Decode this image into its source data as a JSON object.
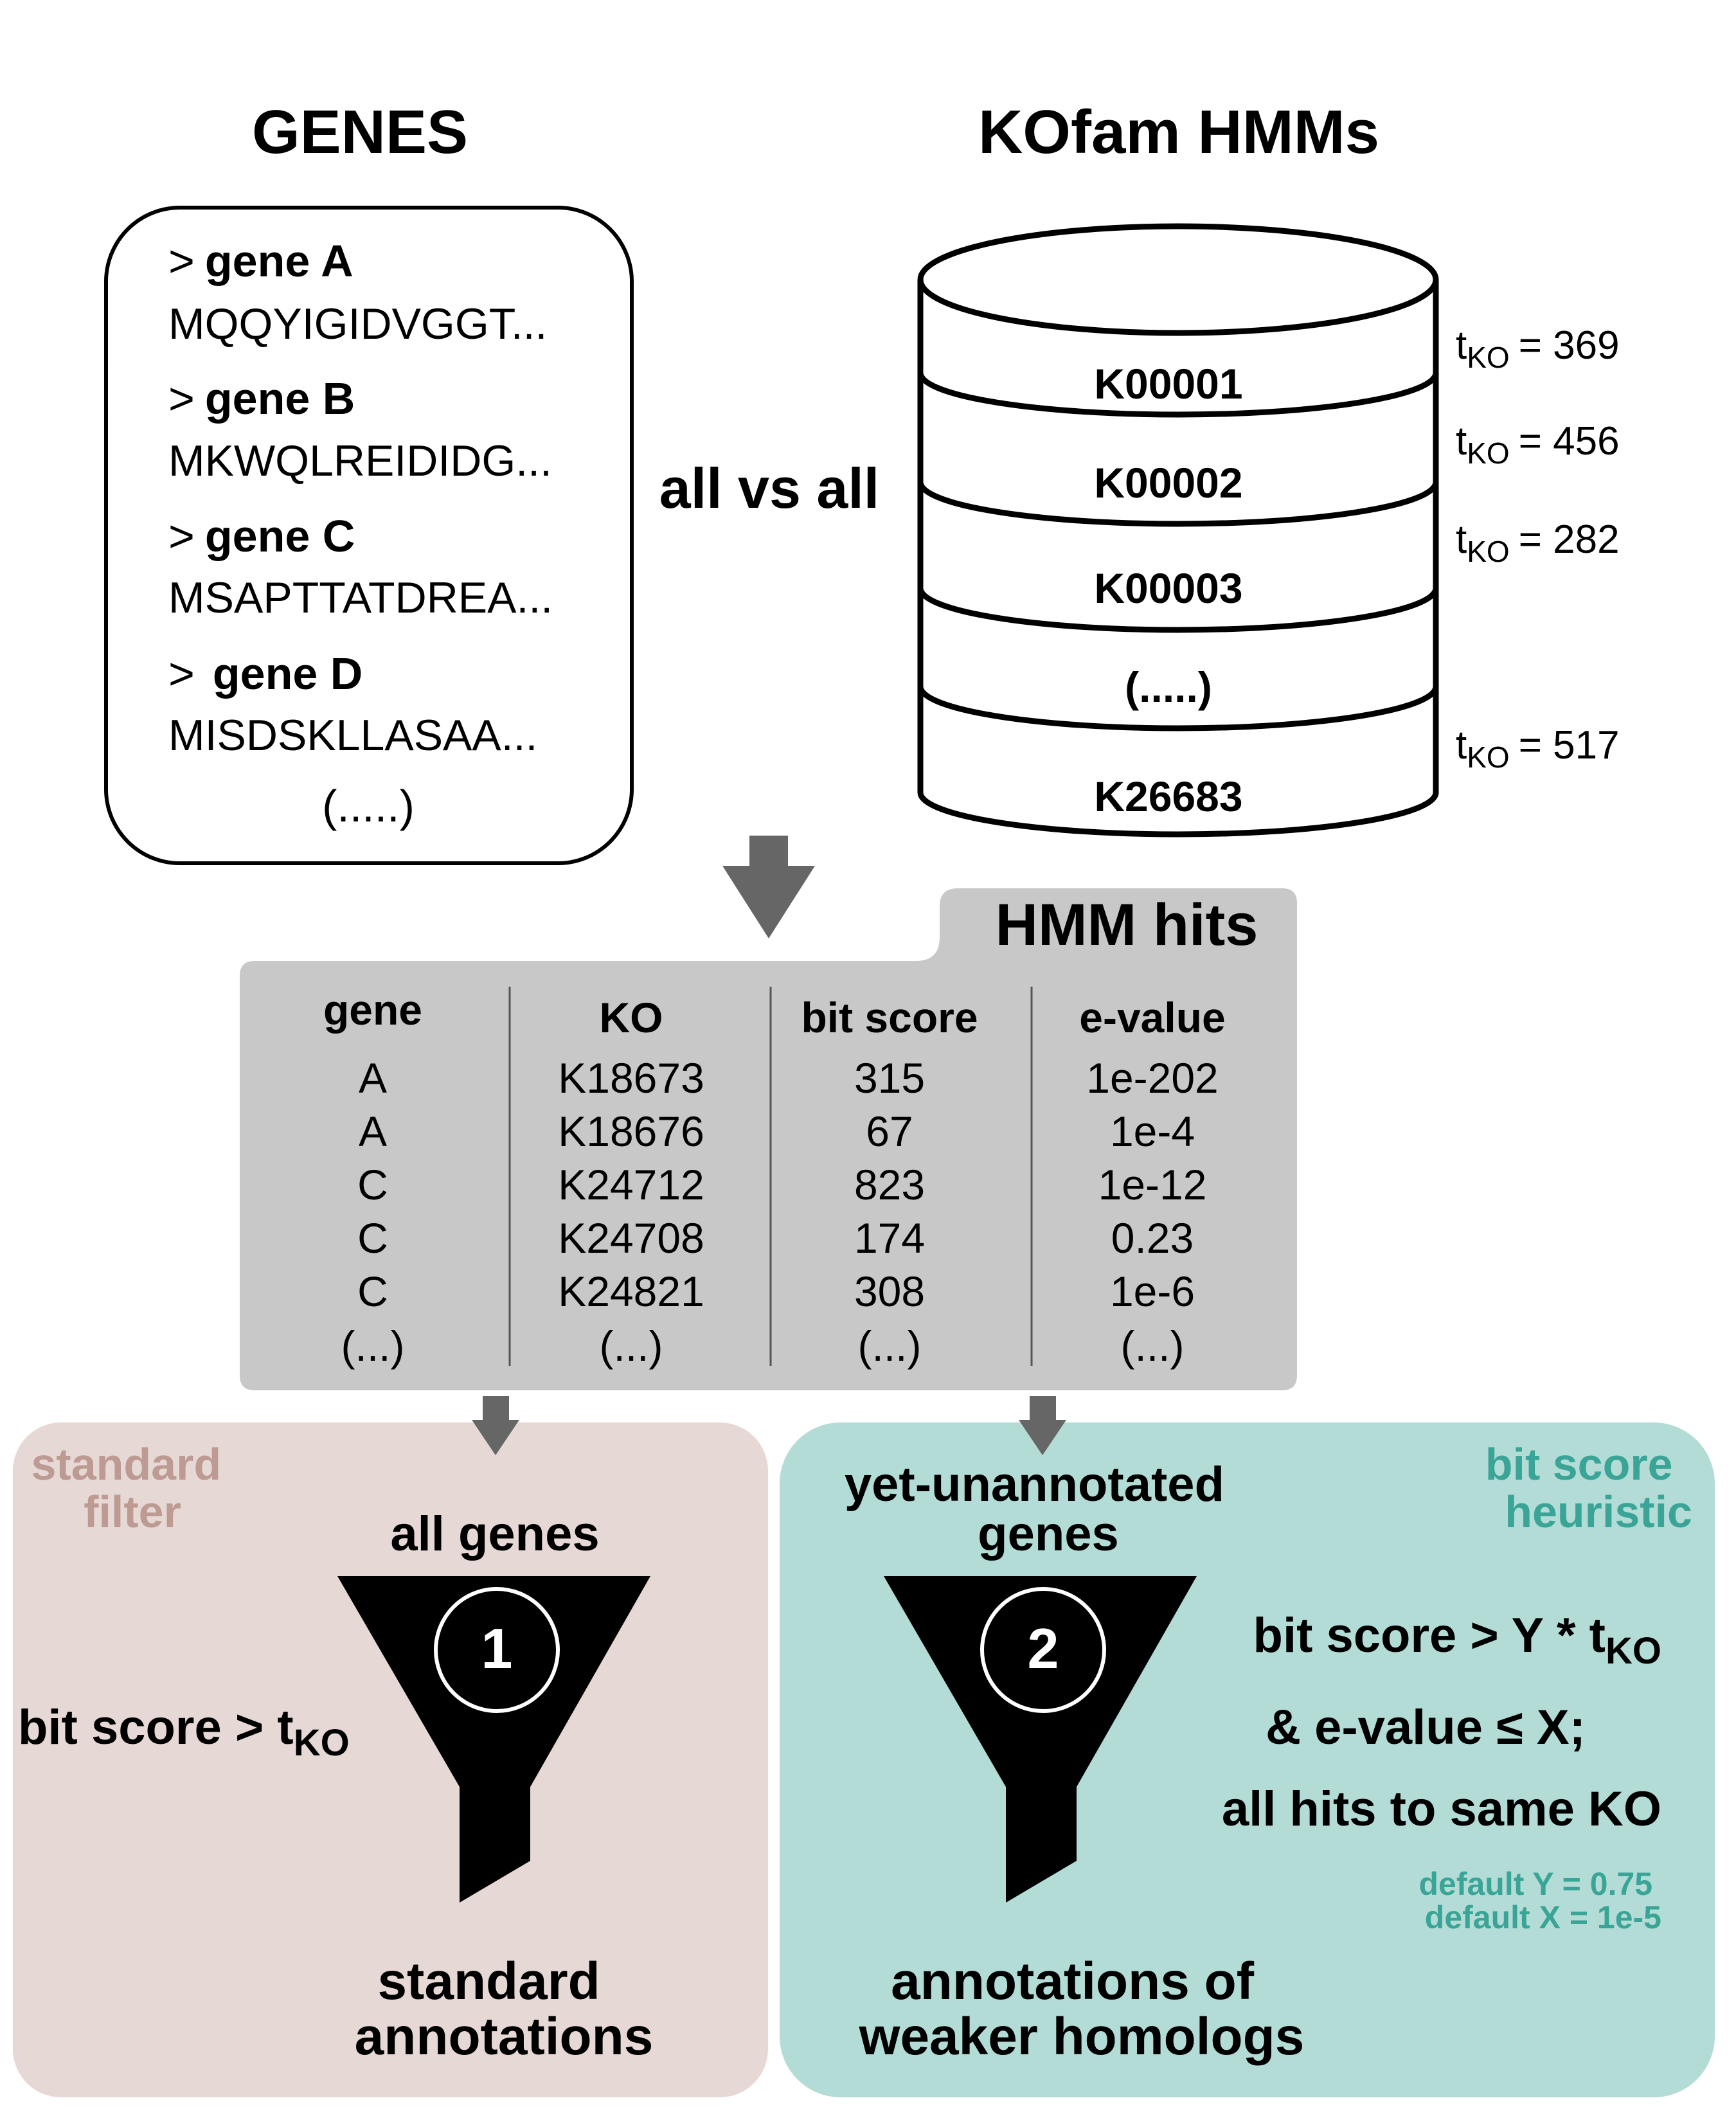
{
  "genes_panel": {
    "title": "GENES",
    "entries": [
      {
        "marker": ">",
        "name": "gene A",
        "sequence": "MQQYIGIDVGGT..."
      },
      {
        "marker": ">",
        "name": "gene B",
        "sequence": "MKWQLREIDIDG..."
      },
      {
        "marker": ">",
        "name": "gene C",
        "sequence": "MSAPTTATDREA..."
      },
      {
        "marker": ">",
        "name": "gene D",
        "sequence": "MISDSKLLASAA..."
      }
    ],
    "ellipsis": "(.....)"
  },
  "comparison_label": "all vs all",
  "kofam_panel": {
    "title": "KOfam HMMs",
    "layers": [
      {
        "ko": "K00001",
        "threshold_label": "t",
        "threshold_sub": "KO",
        "threshold_value": "= 369"
      },
      {
        "ko": "K00002",
        "threshold_label": "t",
        "threshold_sub": "KO",
        "threshold_value": "= 456"
      },
      {
        "ko": "K00003",
        "threshold_label": "t",
        "threshold_sub": "KO",
        "threshold_value": "= 282"
      },
      {
        "ko": "(.....)",
        "threshold_label": "",
        "threshold_sub": "",
        "threshold_value": ""
      },
      {
        "ko": "K26683",
        "threshold_label": "t",
        "threshold_sub": "KO",
        "threshold_value": "= 517"
      }
    ]
  },
  "hits_table": {
    "title": "HMM hits",
    "columns": [
      "gene",
      "KO",
      "bit score",
      "e-value"
    ],
    "rows": [
      [
        "A",
        "K18673",
        "315",
        "1e-202"
      ],
      [
        "A",
        "K18676",
        "67",
        "1e-4"
      ],
      [
        "C",
        "K24712",
        "823",
        "1e-12"
      ],
      [
        "C",
        "K24708",
        "174",
        "0.23"
      ],
      [
        "C",
        "K24821",
        "308",
        "1e-6"
      ],
      [
        "(...)",
        "(...)",
        "(...)",
        "(...)"
      ]
    ]
  },
  "standard_panel": {
    "tag_line1": "standard",
    "tag_line2": "filter",
    "input_label": "all genes",
    "step": "1",
    "criterion_text": "bit score > t",
    "criterion_sub": "KO",
    "output_line1": "standard",
    "output_line2": "annotations"
  },
  "heuristic_panel": {
    "tag_line1": "bit score",
    "tag_line2": "heuristic",
    "input_line1": "yet-unannotated",
    "input_line2": "genes",
    "step": "2",
    "criterion1_text": "bit score > Y * t",
    "criterion1_sub": "KO",
    "criterion2": "& e-value ≤ X;",
    "criterion3": "all hits to same KO",
    "default_y": "default Y = 0.75",
    "default_x": "default X = 1e-5",
    "output_line1": "annotations of",
    "output_line2": "weaker homologs"
  },
  "colors": {
    "black": "#000000",
    "arrow_gray": "#666666",
    "table_gray": "#c8c8c8",
    "standard_bg": "#e6d9d5",
    "standard_tag": "#bd9a92",
    "heuristic_bg": "#b3dcd6",
    "heuristic_tag": "#3aa596"
  }
}
